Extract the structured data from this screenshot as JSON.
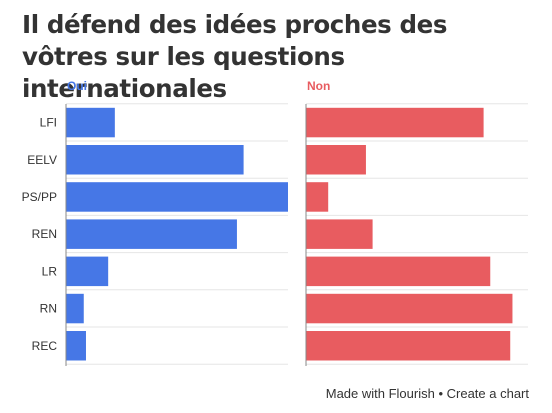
{
  "title": "Il défend des idées proches des vôtres sur les questions internationales",
  "footer": {
    "made_with": "Made with Flourish",
    "separator": " • ",
    "create": "Create a chart"
  },
  "colors": {
    "oui": "#4677e6",
    "non": "#e85c60",
    "grid": "#e6e6e6",
    "axis": "#888888",
    "label": "#333333"
  },
  "chart_data": {
    "type": "bar",
    "title": "Il défend des idées proches des vôtres sur les questions internationales",
    "categories": [
      "LFI",
      "EELV",
      "PS/PP",
      "REN",
      "LR",
      "RN",
      "REC"
    ],
    "series": [
      {
        "name": "Oui",
        "values": [
          22,
          80,
          100,
          77,
          19,
          8,
          9
        ]
      },
      {
        "name": "Non",
        "values": [
          80,
          27,
          10,
          30,
          83,
          93,
          92
        ]
      }
    ],
    "xlim": [
      0,
      100
    ],
    "grid": true,
    "layout": "small multiples, horizontal bars"
  }
}
